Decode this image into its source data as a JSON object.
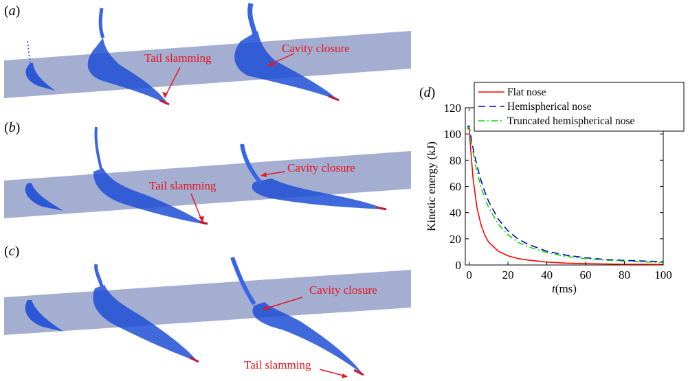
{
  "panels": {
    "a": {
      "label": "a"
    },
    "b": {
      "label": "b"
    },
    "c": {
      "label": "c"
    },
    "d": {
      "label": "d"
    }
  },
  "annotations": {
    "a_tail": "Tail slamming",
    "a_cavity": "Cavity closure",
    "b_tail": "Tail slamming",
    "b_cavity": "Cavity closure",
    "c_cavity": "Cavity closure",
    "c_tail": "Tail slamming"
  },
  "colors": {
    "water_surface": "#8a97c4",
    "body_blue": "#1f4fd6",
    "tip_red": "#c0143c",
    "annotation_red": "#e8141e",
    "flat": "#ff0000",
    "hemispherical": "#0000cc",
    "truncated": "#00dd00"
  },
  "chart_data": {
    "type": "line",
    "xlabel_var": "t",
    "xlabel_unit": "(ms)",
    "ylabel": "Kinetic energy  (kJ)",
    "xlim": [
      -2,
      100
    ],
    "ylim": [
      0,
      120
    ],
    "xticks": [
      "0",
      "20",
      "40",
      "60",
      "80",
      "100"
    ],
    "yticks": [
      "0",
      "20",
      "40",
      "60",
      "80",
      "100",
      "120"
    ],
    "legend_position": "top-right",
    "series": [
      {
        "name": "Flat nose",
        "style": "solid",
        "x": [
          -1,
          0,
          1,
          2,
          4,
          6,
          8,
          10,
          15,
          20,
          25,
          30,
          40,
          50,
          60,
          70,
          80,
          90,
          100
        ],
        "y": [
          104,
          104,
          84,
          66,
          44,
          31,
          23,
          17.5,
          10.5,
          7,
          5,
          3.8,
          2.2,
          1.4,
          1,
          0.8,
          0.6,
          0.5,
          0.4
        ]
      },
      {
        "name": "Hemispherical nose",
        "style": "dashed",
        "x": [
          -1,
          0,
          1,
          2,
          4,
          6,
          8,
          10,
          15,
          20,
          25,
          30,
          40,
          50,
          60,
          70,
          80,
          90,
          100
        ],
        "y": [
          106,
          106,
          97,
          89,
          76,
          65,
          56,
          48.5,
          35,
          26,
          20,
          16,
          10.5,
          7.5,
          5.5,
          4.2,
          3.5,
          3,
          2.6
        ]
      },
      {
        "name": "Truncated hemispherical nose",
        "style": "dash-dot",
        "x": [
          -1,
          0,
          1,
          2,
          4,
          6,
          8,
          10,
          15,
          20,
          25,
          30,
          40,
          50,
          60,
          70,
          80,
          90,
          100
        ],
        "y": [
          105,
          105,
          95,
          86,
          71,
          60,
          51,
          44,
          31,
          23,
          17.5,
          14,
          9.5,
          6.5,
          4.8,
          3.7,
          2.9,
          2.3,
          2
        ]
      }
    ]
  }
}
